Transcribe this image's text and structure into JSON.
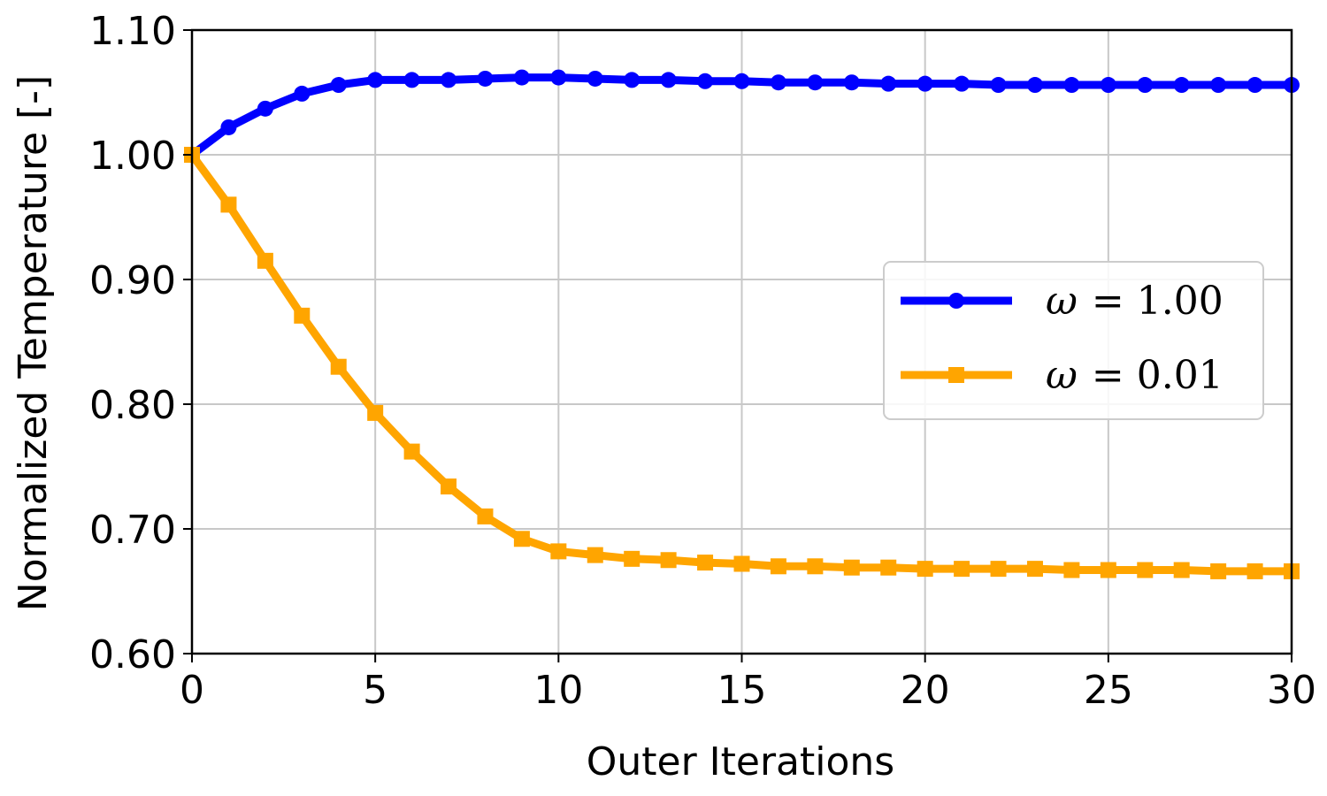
{
  "chart_data": {
    "type": "line",
    "xlabel": "Outer Iterations",
    "ylabel": "Normalized Temperature [-]",
    "xlim": [
      0,
      30
    ],
    "ylim": [
      0.6,
      1.1
    ],
    "xticks": [
      0,
      5,
      10,
      15,
      20,
      25,
      30
    ],
    "xtick_labels": [
      "0",
      "5",
      "10",
      "15",
      "20",
      "25",
      "30"
    ],
    "yticks": [
      0.6,
      0.7,
      0.8,
      0.9,
      1.0,
      1.1
    ],
    "ytick_labels": [
      "0.60",
      "0.70",
      "0.80",
      "0.90",
      "1.00",
      "1.10"
    ],
    "grid": true,
    "legend_position": "center-right",
    "series": [
      {
        "name": "ω = 1.00",
        "legend_symbol": "ω",
        "legend_value": "= 1.00",
        "color": "#0000ff",
        "marker": "circle",
        "x": [
          0,
          1,
          2,
          3,
          4,
          5,
          6,
          7,
          8,
          9,
          10,
          11,
          12,
          13,
          14,
          15,
          16,
          17,
          18,
          19,
          20,
          21,
          22,
          23,
          24,
          25,
          26,
          27,
          28,
          29,
          30
        ],
        "values": [
          1.0,
          1.022,
          1.037,
          1.049,
          1.056,
          1.06,
          1.06,
          1.06,
          1.061,
          1.062,
          1.062,
          1.061,
          1.06,
          1.06,
          1.059,
          1.059,
          1.058,
          1.058,
          1.058,
          1.057,
          1.057,
          1.057,
          1.056,
          1.056,
          1.056,
          1.056,
          1.056,
          1.056,
          1.056,
          1.056,
          1.056
        ]
      },
      {
        "name": "ω = 0.01",
        "legend_symbol": "ω",
        "legend_value": "= 0.01",
        "color": "#ffa500",
        "marker": "square",
        "x": [
          0,
          1,
          2,
          3,
          4,
          5,
          6,
          7,
          8,
          9,
          10,
          11,
          12,
          13,
          14,
          15,
          16,
          17,
          18,
          19,
          20,
          21,
          22,
          23,
          24,
          25,
          26,
          27,
          28,
          29,
          30
        ],
        "values": [
          1.0,
          0.96,
          0.915,
          0.871,
          0.83,
          0.793,
          0.762,
          0.734,
          0.71,
          0.692,
          0.682,
          0.679,
          0.676,
          0.675,
          0.673,
          0.672,
          0.67,
          0.67,
          0.669,
          0.669,
          0.668,
          0.668,
          0.668,
          0.668,
          0.667,
          0.667,
          0.667,
          0.667,
          0.666,
          0.666,
          0.666
        ]
      }
    ]
  }
}
